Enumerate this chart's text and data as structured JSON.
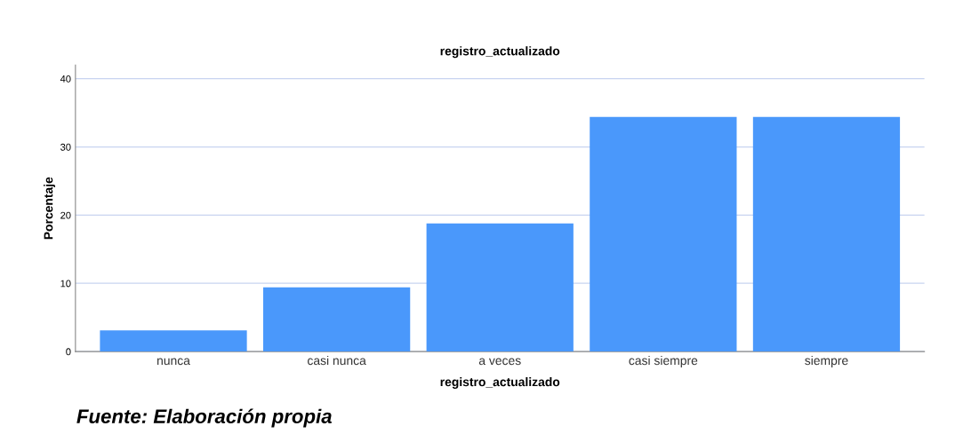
{
  "chart_data": {
    "type": "bar",
    "title": "registro_actualizado",
    "xlabel": "registro_actualizado",
    "ylabel": "Porcentaje",
    "categories": [
      "nunca",
      "casi nunca",
      "a veces",
      "casi siempre",
      "siempre"
    ],
    "values": [
      3.1,
      9.4,
      18.8,
      34.4,
      34.4
    ],
    "color": "#4a98fb",
    "ylim": [
      0,
      42
    ],
    "yticks": [
      0,
      10,
      20,
      30,
      40
    ],
    "grid": "y",
    "legend": false,
    "annotations": [
      "Fuente: Elaboración propia"
    ]
  }
}
